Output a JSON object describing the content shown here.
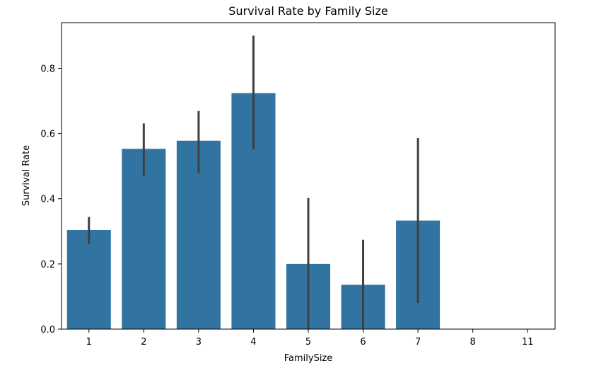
{
  "chart_data": {
    "type": "bar",
    "title": "Survival Rate by Family Size",
    "xlabel": "FamilySize",
    "ylabel": "Survival Rate",
    "categories": [
      "1",
      "2",
      "3",
      "4",
      "5",
      "6",
      "7",
      "8",
      "11"
    ],
    "values": [
      0.304,
      0.553,
      0.578,
      0.724,
      0.2,
      0.136,
      0.333,
      0.0,
      0.0
    ],
    "error_low": [
      0.262,
      0.468,
      0.478,
      0.552,
      0.0,
      0.0,
      0.08,
      0.0,
      0.0
    ],
    "error_high": [
      0.344,
      0.631,
      0.669,
      0.9,
      0.402,
      0.274,
      0.586,
      0.0,
      0.0
    ],
    "ylim": [
      0,
      0.94
    ],
    "yticks": [
      "0.0",
      "0.2",
      "0.4",
      "0.6",
      "0.8"
    ],
    "ytick_values": [
      0.0,
      0.2,
      0.4,
      0.6,
      0.8
    ],
    "grid": false,
    "colors": {
      "bar": "#3274a1",
      "error_bar": "#3f3f3f"
    }
  }
}
